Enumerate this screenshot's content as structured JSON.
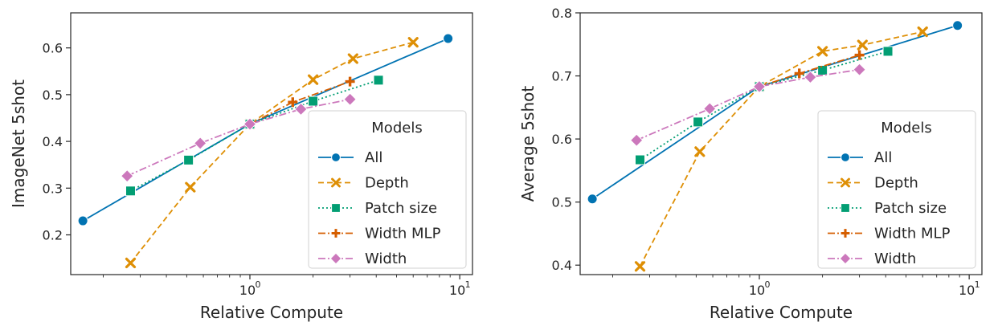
{
  "chart_data": [
    {
      "type": "line",
      "xlabel": "Relative Compute",
      "ylabel": "ImageNet 5shot",
      "xscale": "log",
      "xlim": [
        0.14,
        11.5
      ],
      "ylim": [
        0.115,
        0.675
      ],
      "yticks": [
        0.2,
        0.3,
        0.4,
        0.5,
        0.6
      ],
      "ytick_labels": [
        "0.2",
        "0.3",
        "0.4",
        "0.5",
        "0.6"
      ],
      "legend": {
        "title": "Models",
        "placement": "lower right"
      },
      "series": [
        {
          "name": "All",
          "color": "#0173b2",
          "marker": "circle",
          "dash": "solid",
          "x": [
            0.16,
            1.0,
            8.8
          ],
          "y": [
            0.23,
            0.437,
            0.62
          ]
        },
        {
          "name": "Depth",
          "color": "#de8f05",
          "marker": "x",
          "dash": "dashed",
          "x": [
            0.27,
            0.52,
            1.0,
            2.0,
            3.1,
            6.0
          ],
          "y": [
            0.14,
            0.302,
            0.437,
            0.532,
            0.577,
            0.612
          ]
        },
        {
          "name": "Patch size",
          "color": "#029e73",
          "marker": "square",
          "dash": "dotted",
          "x": [
            0.27,
            0.51,
            1.0,
            2.0,
            4.1
          ],
          "y": [
            0.294,
            0.36,
            0.437,
            0.486,
            0.531
          ]
        },
        {
          "name": "Width MLP",
          "color": "#d55e00",
          "marker": "plus",
          "dash": "dashdot",
          "x": [
            1.0,
            1.6,
            3.0
          ],
          "y": [
            0.437,
            0.484,
            0.528
          ]
        },
        {
          "name": "Width",
          "color": "#cc78bc",
          "marker": "diamond",
          "dash": "dashdot",
          "x": [
            0.26,
            0.58,
            1.0,
            1.75,
            3.0
          ],
          "y": [
            0.326,
            0.396,
            0.437,
            0.469,
            0.49
          ]
        }
      ]
    },
    {
      "type": "line",
      "xlabel": "Relative Compute",
      "ylabel": "Average 5shot",
      "xscale": "log",
      "xlim": [
        0.14,
        11.5
      ],
      "ylim": [
        0.385,
        0.8
      ],
      "yticks": [
        0.4,
        0.5,
        0.6,
        0.7,
        0.8
      ],
      "ytick_labels": [
        "0.4",
        "0.5",
        "0.6",
        "0.7",
        "0.8"
      ],
      "legend": {
        "title": "Models",
        "placement": "lower right"
      },
      "series": [
        {
          "name": "All",
          "color": "#0173b2",
          "marker": "circle",
          "dash": "solid",
          "x": [
            0.16,
            1.0,
            8.8
          ],
          "y": [
            0.505,
            0.683,
            0.78
          ]
        },
        {
          "name": "Depth",
          "color": "#de8f05",
          "marker": "x",
          "dash": "dashed",
          "x": [
            0.27,
            0.52,
            1.0,
            2.0,
            3.1,
            6.0
          ],
          "y": [
            0.398,
            0.58,
            0.683,
            0.739,
            0.749,
            0.77
          ]
        },
        {
          "name": "Patch size",
          "color": "#029e73",
          "marker": "square",
          "dash": "dotted",
          "x": [
            0.27,
            0.51,
            1.0,
            2.0,
            4.1
          ],
          "y": [
            0.567,
            0.627,
            0.683,
            0.709,
            0.739
          ]
        },
        {
          "name": "Width MLP",
          "color": "#d55e00",
          "marker": "plus",
          "dash": "dashdot",
          "x": [
            1.0,
            1.55,
            3.0
          ],
          "y": [
            0.683,
            0.704,
            0.733
          ]
        },
        {
          "name": "Width",
          "color": "#cc78bc",
          "marker": "diamond",
          "dash": "dashdot",
          "x": [
            0.26,
            0.58,
            1.0,
            1.75,
            3.0
          ],
          "y": [
            0.598,
            0.648,
            0.683,
            0.698,
            0.71
          ]
        }
      ]
    }
  ]
}
